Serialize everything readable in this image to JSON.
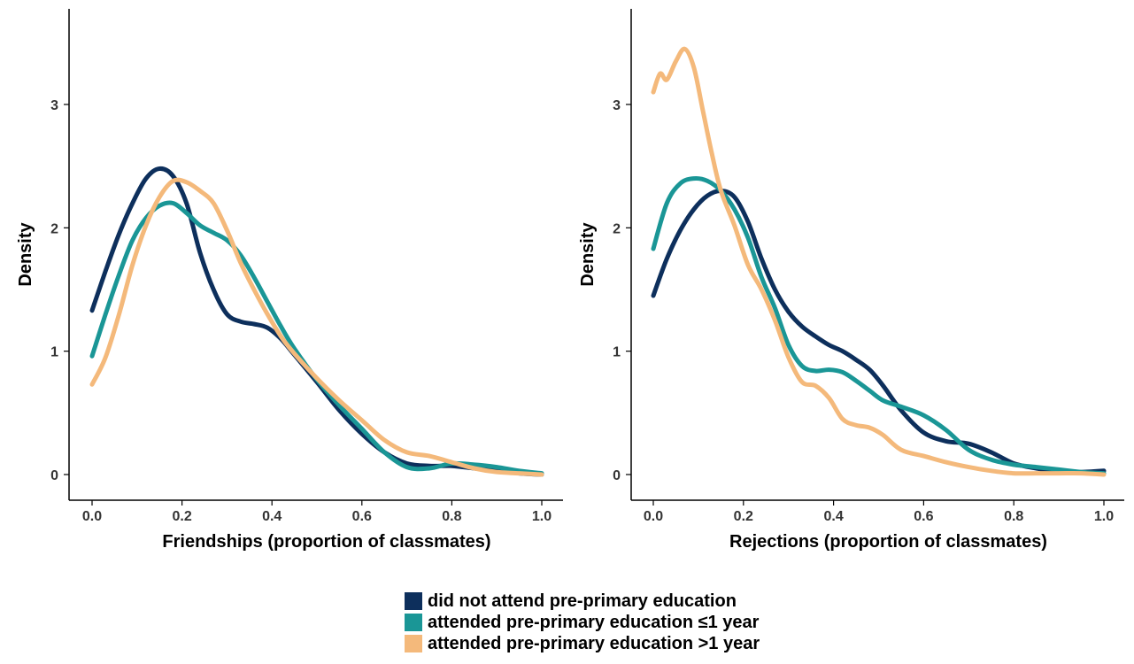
{
  "chart_data": [
    {
      "type": "line",
      "xlabel": "Friendships (proportion of classmates)",
      "ylabel": "Density",
      "xlim": [
        -0.05,
        1.02
      ],
      "ylim": [
        -0.2,
        3.8
      ],
      "xticks": [
        "0.0",
        "0.2",
        "0.4",
        "0.6",
        "0.8",
        "1.0"
      ],
      "yticks": [
        "0",
        "1",
        "2",
        "3"
      ],
      "grid": false,
      "series": [
        {
          "name": "did not attend pre-primary education",
          "color": "#0d2f5c",
          "x": [
            0.0,
            0.03,
            0.06,
            0.09,
            0.12,
            0.15,
            0.18,
            0.21,
            0.24,
            0.27,
            0.3,
            0.33,
            0.36,
            0.39,
            0.42,
            0.45,
            0.5,
            0.55,
            0.6,
            0.65,
            0.7,
            0.75,
            0.8,
            0.85,
            0.9,
            0.95,
            1.0
          ],
          "y": [
            1.33,
            1.65,
            1.95,
            2.2,
            2.4,
            2.48,
            2.42,
            2.2,
            1.8,
            1.5,
            1.3,
            1.24,
            1.22,
            1.19,
            1.1,
            0.97,
            0.75,
            0.52,
            0.33,
            0.18,
            0.09,
            0.07,
            0.07,
            0.05,
            0.03,
            0.01,
            0.0
          ]
        },
        {
          "name": "attended pre-primary education ≤1 year",
          "color": "#1a9696",
          "x": [
            0.0,
            0.03,
            0.06,
            0.09,
            0.12,
            0.15,
            0.18,
            0.21,
            0.24,
            0.27,
            0.3,
            0.33,
            0.36,
            0.39,
            0.42,
            0.45,
            0.5,
            0.55,
            0.6,
            0.65,
            0.7,
            0.75,
            0.8,
            0.85,
            0.9,
            0.95,
            1.0
          ],
          "y": [
            0.96,
            1.3,
            1.62,
            1.9,
            2.08,
            2.18,
            2.2,
            2.12,
            2.02,
            1.96,
            1.9,
            1.78,
            1.6,
            1.4,
            1.2,
            1.02,
            0.77,
            0.56,
            0.37,
            0.18,
            0.06,
            0.05,
            0.09,
            0.08,
            0.06,
            0.03,
            0.01
          ]
        },
        {
          "name": "attended pre-primary education >1 year",
          "color": "#f4b97b",
          "x": [
            0.0,
            0.03,
            0.06,
            0.09,
            0.12,
            0.15,
            0.18,
            0.21,
            0.24,
            0.27,
            0.3,
            0.33,
            0.36,
            0.39,
            0.42,
            0.45,
            0.5,
            0.55,
            0.6,
            0.65,
            0.7,
            0.75,
            0.8,
            0.85,
            0.9,
            0.95,
            1.0
          ],
          "y": [
            0.73,
            0.95,
            1.3,
            1.7,
            2.02,
            2.25,
            2.38,
            2.37,
            2.3,
            2.2,
            1.98,
            1.72,
            1.5,
            1.3,
            1.12,
            0.98,
            0.78,
            0.6,
            0.44,
            0.28,
            0.18,
            0.15,
            0.1,
            0.05,
            0.02,
            0.01,
            0.0
          ]
        }
      ]
    },
    {
      "type": "line",
      "xlabel": "Rejections (proportion of classmates)",
      "ylabel": "Density",
      "xlim": [
        -0.05,
        1.02
      ],
      "ylim": [
        -0.2,
        3.8
      ],
      "xticks": [
        "0.0",
        "0.2",
        "0.4",
        "0.6",
        "0.8",
        "1.0"
      ],
      "yticks": [
        "0",
        "1",
        "2",
        "3"
      ],
      "grid": false,
      "series": [
        {
          "name": "did not attend pre-primary education",
          "color": "#0d2f5c",
          "x": [
            0.0,
            0.03,
            0.06,
            0.09,
            0.12,
            0.15,
            0.18,
            0.21,
            0.24,
            0.27,
            0.3,
            0.33,
            0.36,
            0.39,
            0.42,
            0.45,
            0.48,
            0.51,
            0.55,
            0.6,
            0.65,
            0.7,
            0.75,
            0.8,
            0.85,
            0.9,
            0.95,
            1.0
          ],
          "y": [
            1.45,
            1.75,
            1.98,
            2.15,
            2.26,
            2.3,
            2.25,
            2.05,
            1.75,
            1.5,
            1.32,
            1.2,
            1.12,
            1.05,
            1.0,
            0.93,
            0.85,
            0.72,
            0.52,
            0.34,
            0.27,
            0.25,
            0.18,
            0.09,
            0.05,
            0.02,
            0.02,
            0.03
          ]
        },
        {
          "name": "attended pre-primary education ≤1 year",
          "color": "#1a9696",
          "x": [
            0.0,
            0.03,
            0.06,
            0.09,
            0.12,
            0.15,
            0.18,
            0.21,
            0.24,
            0.27,
            0.3,
            0.33,
            0.36,
            0.39,
            0.42,
            0.45,
            0.48,
            0.51,
            0.55,
            0.6,
            0.65,
            0.7,
            0.75,
            0.8,
            0.85,
            0.9,
            0.95,
            1.0
          ],
          "y": [
            1.83,
            2.2,
            2.36,
            2.4,
            2.38,
            2.3,
            2.15,
            1.92,
            1.6,
            1.35,
            1.05,
            0.88,
            0.84,
            0.85,
            0.83,
            0.76,
            0.68,
            0.6,
            0.55,
            0.48,
            0.36,
            0.2,
            0.12,
            0.08,
            0.06,
            0.04,
            0.02,
            0.01
          ]
        },
        {
          "name": "attended pre-primary education >1 year",
          "color": "#f4b97b",
          "x": [
            0.0,
            0.015,
            0.03,
            0.05,
            0.07,
            0.09,
            0.11,
            0.13,
            0.15,
            0.18,
            0.21,
            0.24,
            0.27,
            0.3,
            0.33,
            0.36,
            0.39,
            0.42,
            0.45,
            0.48,
            0.51,
            0.55,
            0.6,
            0.65,
            0.7,
            0.75,
            0.8,
            0.85,
            0.9,
            0.95,
            1.0
          ],
          "y": [
            3.1,
            3.25,
            3.2,
            3.35,
            3.45,
            3.3,
            2.95,
            2.6,
            2.3,
            2.02,
            1.7,
            1.5,
            1.25,
            0.95,
            0.75,
            0.72,
            0.62,
            0.45,
            0.4,
            0.38,
            0.32,
            0.2,
            0.15,
            0.1,
            0.06,
            0.03,
            0.01,
            0.01,
            0.01,
            0.01,
            0.0
          ]
        }
      ]
    }
  ],
  "legend": {
    "items": [
      {
        "label": "did not attend pre-primary education",
        "color": "#0d2f5c"
      },
      {
        "label": "attended pre-primary education ≤1 year",
        "color": "#1a9696"
      },
      {
        "label": "attended pre-primary education >1 year",
        "color": "#f4b97b"
      }
    ]
  }
}
